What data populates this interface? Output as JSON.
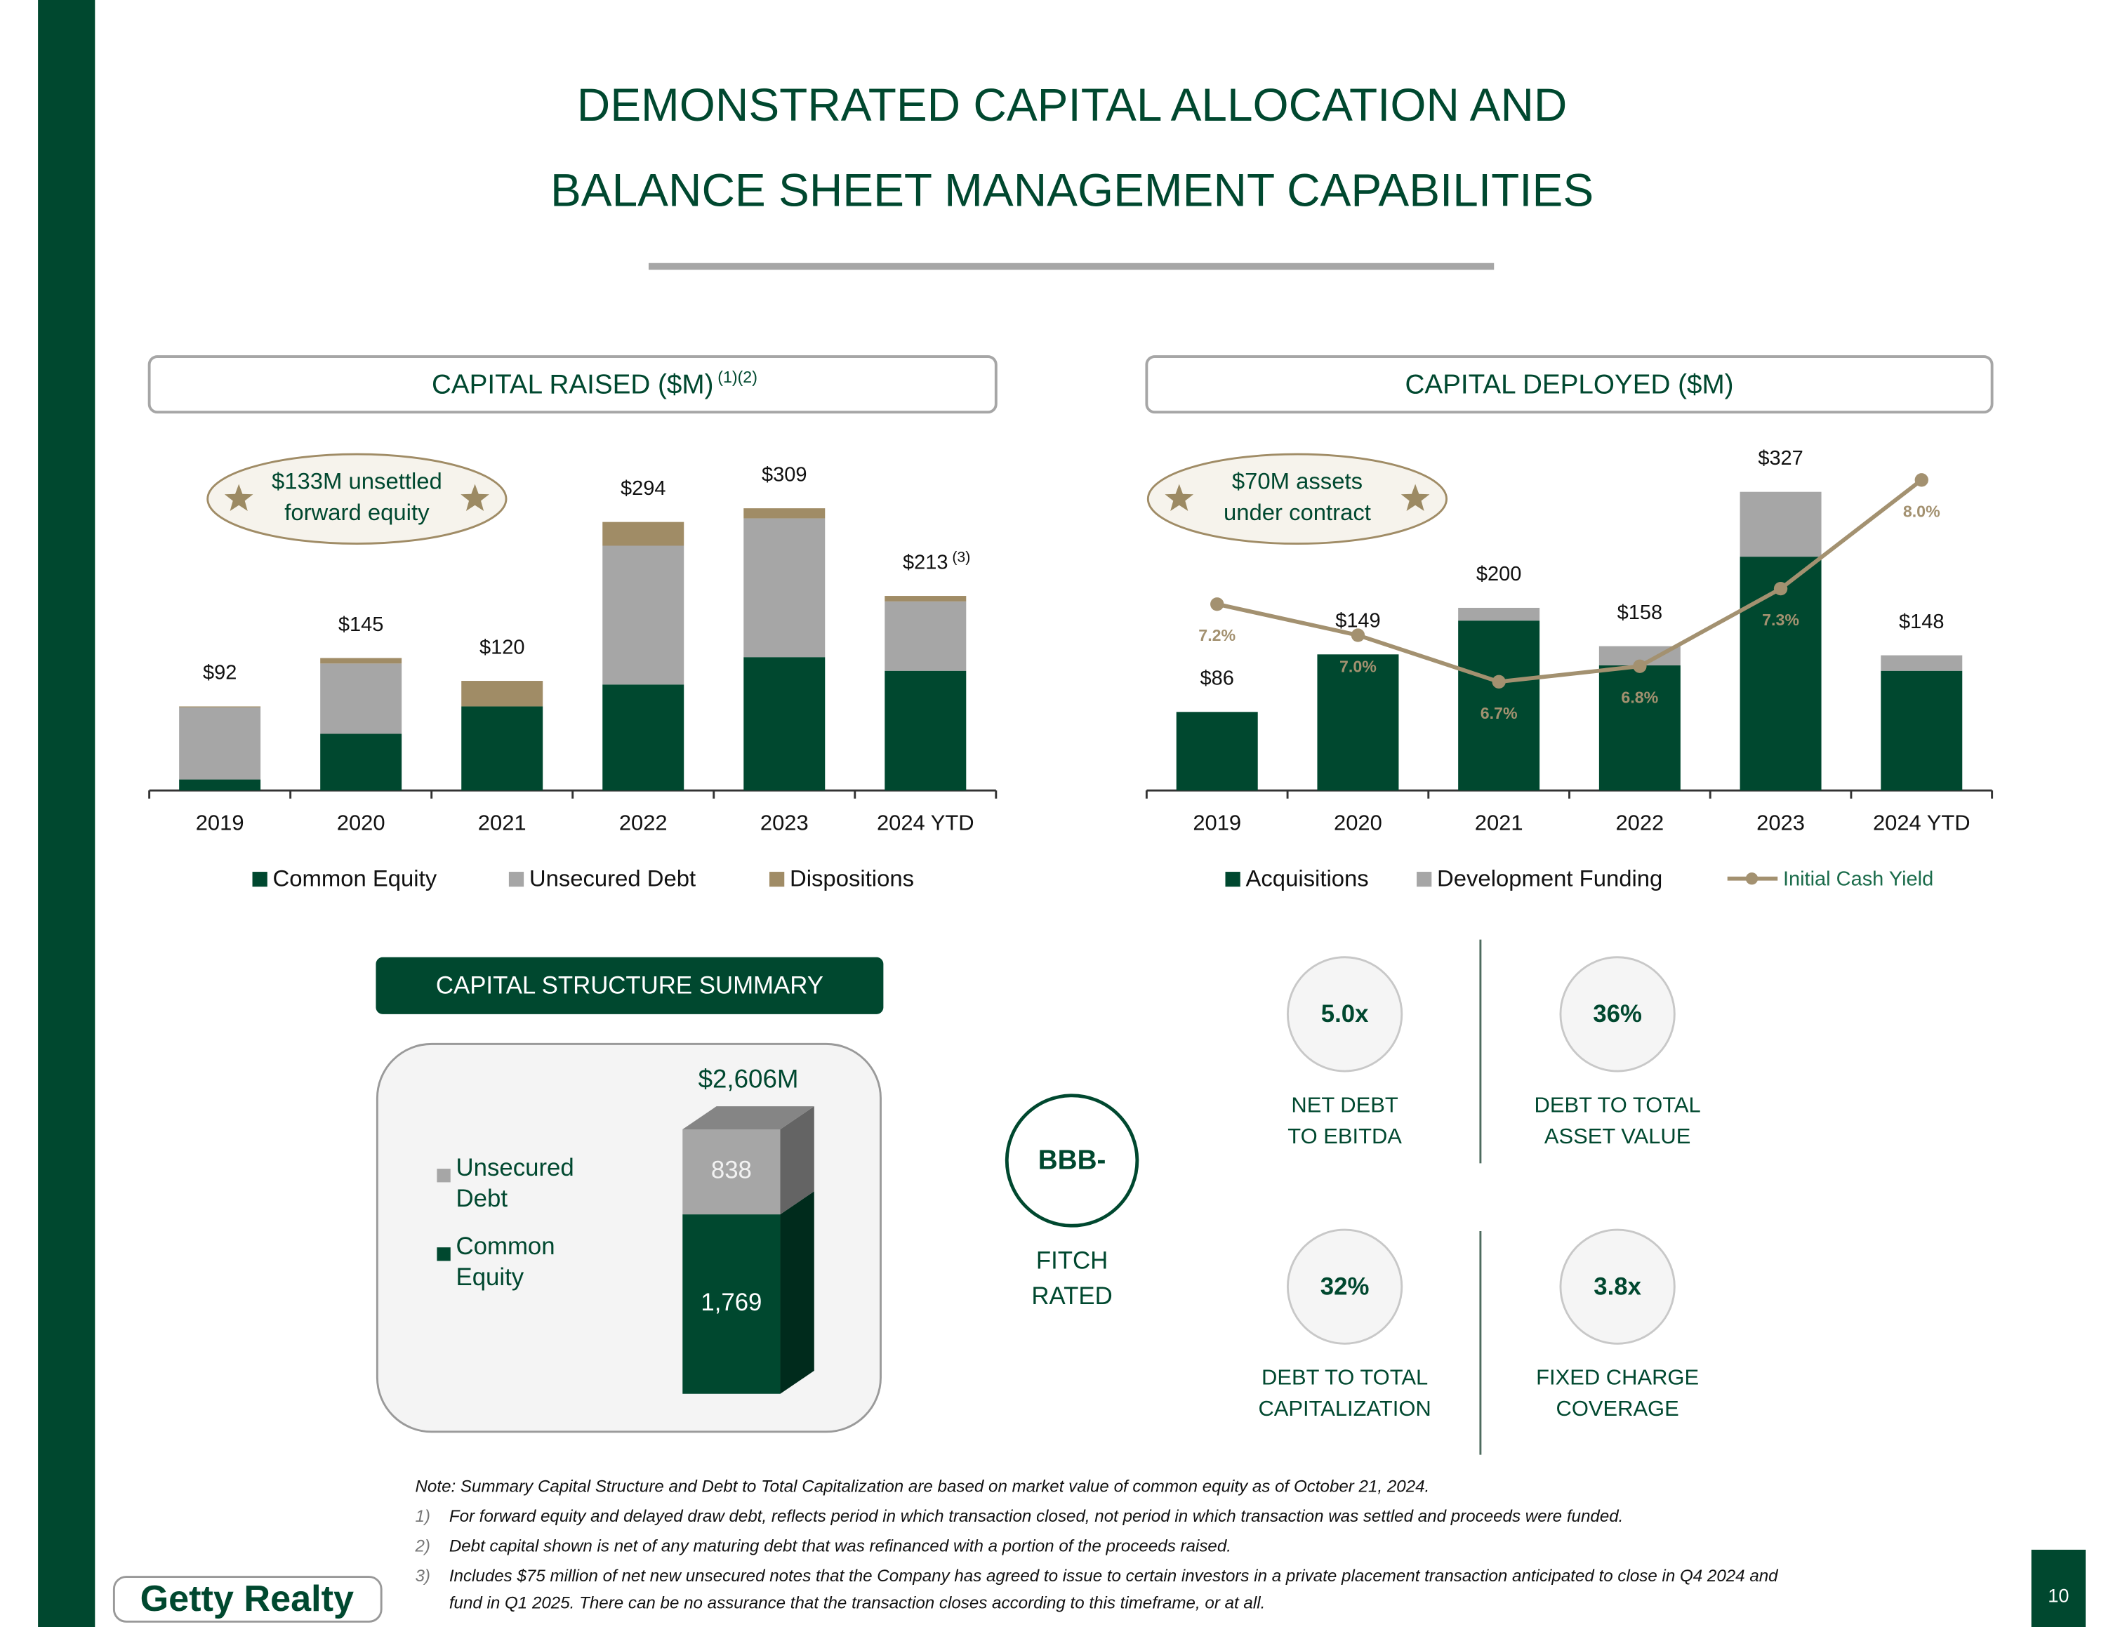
{
  "title_lines": [
    "DEMONSTRATED CAPITAL ALLOCATION AND",
    "BALANCE SHEET MANAGEMENT CAPABILITIES"
  ],
  "chart_data": [
    {
      "type": "bar",
      "title": "CAPITAL RAISED ($M)",
      "title_note": "(1)(2)",
      "callout": [
        "$133M unsettled",
        "forward equity"
      ],
      "categories": [
        "2019",
        "2020",
        "2021",
        "2022",
        "2023",
        "2024 YTD"
      ],
      "series": [
        {
          "name": "Common Equity",
          "color": "#00482f",
          "values": [
            12,
            62,
            92,
            116,
            146,
            131
          ]
        },
        {
          "name": "Unsecured Debt",
          "color": "#a6a6a6",
          "values": [
            79,
            77,
            0,
            152,
            152,
            76
          ]
        },
        {
          "name": "Dispositions",
          "color": "#a08c66",
          "values": [
            1,
            6,
            28,
            26,
            11,
            6
          ]
        }
      ],
      "totals": [
        92,
        145,
        120,
        294,
        309,
        213
      ],
      "total_labels": [
        "$92",
        "$145",
        "$120",
        "$294",
        "$309",
        "$213"
      ],
      "total_notes": [
        null,
        null,
        null,
        null,
        null,
        "(3)"
      ],
      "ylim": [
        0,
        340
      ]
    },
    {
      "type": "bar",
      "title": "CAPITAL DEPLOYED ($M)",
      "callout": [
        "$70M assets",
        "under contract"
      ],
      "categories": [
        "2019",
        "2020",
        "2021",
        "2022",
        "2023",
        "2024 YTD"
      ],
      "series": [
        {
          "name": "Acquisitions",
          "color": "#00482f",
          "values": [
            86,
            149,
            186,
            137,
            256,
            131
          ]
        },
        {
          "name": "Development Funding",
          "color": "#a6a6a6",
          "values": [
            0,
            0,
            14,
            21,
            71,
            17
          ]
        },
        {
          "name": "Initial Cash Yield",
          "color": "#a39170",
          "type": "line",
          "axis": "y2",
          "values": [
            7.2,
            7.0,
            6.7,
            6.8,
            7.3,
            8.0
          ],
          "value_labels": [
            "7.2%",
            "7.0%",
            "6.7%",
            "6.8%",
            "7.3%",
            "8.0%"
          ]
        }
      ],
      "totals": [
        86,
        149,
        200,
        158,
        327,
        148
      ],
      "total_labels": [
        "$86",
        "$149",
        "$200",
        "$158",
        "$327",
        "$148"
      ],
      "ylim": [
        0,
        340
      ],
      "y2lim": [
        6.0,
        8.0
      ]
    },
    {
      "type": "column3d",
      "title": "CAPITAL STRUCTURE SUMMARY",
      "series": [
        {
          "name": "Common Equity",
          "color": "#00482f",
          "values": [
            1769
          ],
          "value_labels": [
            "1,769"
          ]
        },
        {
          "name": "Unsecured Debt",
          "color": "#a6a6a6",
          "values": [
            838
          ],
          "value_labels": [
            "838"
          ]
        }
      ],
      "total": 2606,
      "total_label": "$2,606M",
      "ylim": [
        0,
        2700
      ]
    }
  ],
  "rating": {
    "value": "BBB-",
    "label": [
      "FITCH",
      "RATED"
    ]
  },
  "metrics": [
    {
      "value": "5.0x",
      "label": [
        "NET DEBT",
        "TO EBITDA"
      ]
    },
    {
      "value": "36%",
      "label": [
        "DEBT TO TOTAL",
        "ASSET VALUE"
      ]
    },
    {
      "value": "32%",
      "label": [
        "DEBT TO TOTAL",
        "CAPITALIZATION"
      ]
    },
    {
      "value": "3.8x",
      "label": [
        "FIXED CHARGE",
        "COVERAGE"
      ]
    }
  ],
  "notes": [
    {
      "lines": [
        "Note: Summary Capital Structure and Debt to Total Capitalization are based on market value of common equity as of October 21, 2024."
      ]
    },
    {
      "marker": "1)",
      "lines": [
        "For forward equity and delayed draw debt, reflects period in which transaction closed, not period in which transaction was settled and proceeds were funded."
      ]
    },
    {
      "marker": "2)",
      "lines": [
        "Debt capital shown is net of any maturing debt that was refinanced with a portion of the proceeds raised."
      ]
    },
    {
      "marker": "3)",
      "lines": [
        "Includes $75 million of net new unsecured notes that the Company has agreed to issue to certain investors in a private placement transaction anticipated to close in Q4 2024 and",
        "fund in Q1 2025.  There can be no assurance that the transaction closes according to this timeframe, or at all."
      ]
    }
  ],
  "logo": "Getty Realty",
  "page_number": "10"
}
